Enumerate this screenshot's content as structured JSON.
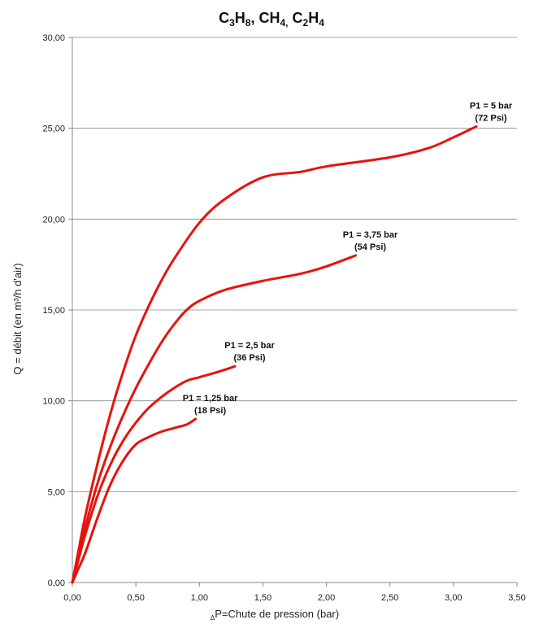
{
  "chart_data": {
    "type": "line",
    "title_parts": [
      {
        "t": "C",
        "sub": false
      },
      {
        "t": "3",
        "sub": true
      },
      {
        "t": "H",
        "sub": false
      },
      {
        "t": "8",
        "sub": true
      },
      {
        "t": ", CH",
        "sub": false
      },
      {
        "t": "4,",
        "sub": true
      },
      {
        "t": " C",
        "sub": false
      },
      {
        "t": "2",
        "sub": true
      },
      {
        "t": "H",
        "sub": false
      },
      {
        "t": "4",
        "sub": true
      }
    ],
    "xlabel_prefix": "Δ",
    "xlabel": "P=Chute de pression (bar)",
    "ylabel": "Q = débit (en m³/h d'air)",
    "xlim": [
      0,
      3.5
    ],
    "ylim": [
      0,
      30
    ],
    "x_ticks": [
      "0,00",
      "0,50",
      "1,00",
      "1,50",
      "2,00",
      "2,50",
      "3,00",
      "3,50"
    ],
    "y_ticks": [
      "0,00",
      "5,00",
      "10,00",
      "15,00",
      "20,00",
      "25,00",
      "30,00"
    ],
    "grid": "horizontal",
    "color": "#e8120c",
    "series": [
      {
        "points": [
          [
            0,
            0
          ],
          [
            0.05,
            1.8
          ],
          [
            0.1,
            3.6
          ],
          [
            0.2,
            6.6
          ],
          [
            0.3,
            9.3
          ],
          [
            0.4,
            11.6
          ],
          [
            0.5,
            13.6
          ],
          [
            0.6,
            15.2
          ],
          [
            0.7,
            16.6
          ],
          [
            0.8,
            17.8
          ],
          [
            1.0,
            19.8
          ],
          [
            1.2,
            21.1
          ],
          [
            1.5,
            22.3
          ],
          [
            1.8,
            22.6
          ],
          [
            2.0,
            22.9
          ],
          [
            2.5,
            23.4
          ],
          [
            2.8,
            23.9
          ],
          [
            3.0,
            24.5
          ],
          [
            3.18,
            25.1
          ]
        ],
        "annotation": [
          "P1 = 5 bar",
          "(72 Psi)"
        ]
      },
      {
        "points": [
          [
            0,
            0
          ],
          [
            0.05,
            1.5
          ],
          [
            0.1,
            3.0
          ],
          [
            0.2,
            5.5
          ],
          [
            0.3,
            7.5
          ],
          [
            0.4,
            9.2
          ],
          [
            0.5,
            10.7
          ],
          [
            0.6,
            12.0
          ],
          [
            0.7,
            13.2
          ],
          [
            0.8,
            14.2
          ],
          [
            0.9,
            15.0
          ],
          [
            1.0,
            15.5
          ],
          [
            1.2,
            16.1
          ],
          [
            1.5,
            16.6
          ],
          [
            1.8,
            17.0
          ],
          [
            2.0,
            17.4
          ],
          [
            2.23,
            18.0
          ]
        ],
        "annotation": [
          "P1 = 3,75 bar",
          "(54 Psi)"
        ]
      },
      {
        "points": [
          [
            0,
            0
          ],
          [
            0.05,
            1.3
          ],
          [
            0.1,
            2.6
          ],
          [
            0.2,
            4.8
          ],
          [
            0.3,
            6.5
          ],
          [
            0.4,
            7.8
          ],
          [
            0.5,
            8.8
          ],
          [
            0.6,
            9.6
          ],
          [
            0.7,
            10.2
          ],
          [
            0.8,
            10.7
          ],
          [
            0.9,
            11.1
          ],
          [
            1.0,
            11.3
          ],
          [
            1.15,
            11.6
          ],
          [
            1.28,
            11.9
          ]
        ],
        "annotation": [
          "P1 = 2,5 bar",
          "(36 Psi)"
        ]
      },
      {
        "points": [
          [
            0,
            0
          ],
          [
            0.05,
            0.8
          ],
          [
            0.1,
            1.6
          ],
          [
            0.2,
            3.6
          ],
          [
            0.3,
            5.4
          ],
          [
            0.4,
            6.7
          ],
          [
            0.5,
            7.6
          ],
          [
            0.6,
            8.0
          ],
          [
            0.7,
            8.3
          ],
          [
            0.8,
            8.5
          ],
          [
            0.9,
            8.7
          ],
          [
            0.97,
            9.0
          ]
        ],
        "annotation": [
          "P1 = 1,25 bar",
          "(18 Psi)"
        ]
      }
    ]
  }
}
